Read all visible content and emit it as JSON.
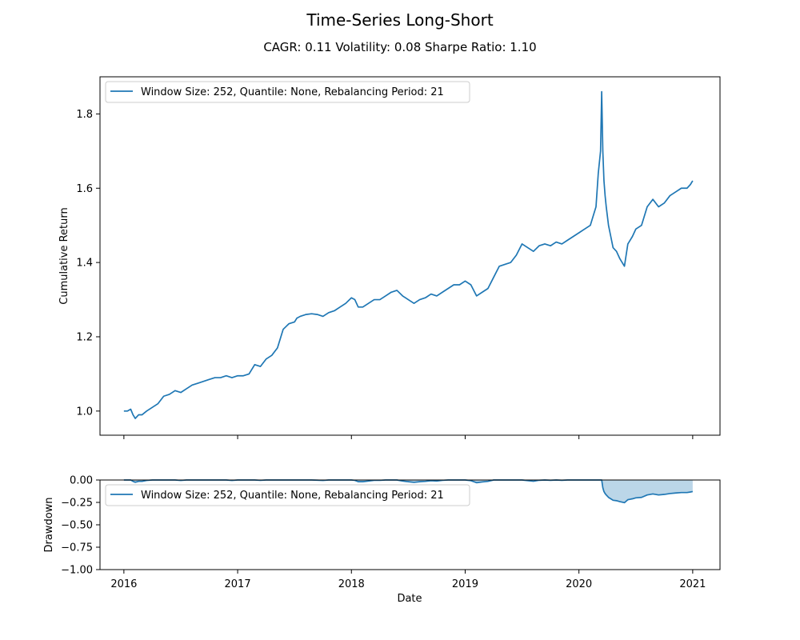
{
  "figure": {
    "title": "Time-Series Long-Short",
    "subtitle": "CAGR: 0.11 Volatility: 0.08 Sharpe Ratio: 1.10",
    "line_color": "#1f77b4"
  },
  "chart_data": [
    {
      "type": "line",
      "name": "cumulative-return",
      "xlabel": "",
      "ylabel": "Cumulative Return",
      "x_ticks": [
        "2016",
        "2017",
        "2018",
        "2019",
        "2020",
        "2021"
      ],
      "y_ticks": [
        "1.0",
        "1.2",
        "1.4",
        "1.6",
        "1.8"
      ],
      "xlim": [
        2015.79,
        2021.24
      ],
      "ylim": [
        0.935,
        1.9
      ],
      "grid": false,
      "legend": "upper left",
      "series": [
        {
          "name": "Window Size: 252, Quantile: None, Rebalancing Period: 21",
          "x": [
            2016.0,
            2016.03,
            2016.06,
            2016.08,
            2016.1,
            2016.13,
            2016.16,
            2016.2,
            2016.25,
            2016.3,
            2016.35,
            2016.4,
            2016.45,
            2016.5,
            2016.55,
            2016.6,
            2016.65,
            2016.7,
            2016.75,
            2016.8,
            2016.85,
            2016.9,
            2016.95,
            2017.0,
            2017.05,
            2017.1,
            2017.15,
            2017.2,
            2017.25,
            2017.3,
            2017.35,
            2017.4,
            2017.45,
            2017.5,
            2017.52,
            2017.55,
            2017.6,
            2017.65,
            2017.7,
            2017.75,
            2017.8,
            2017.85,
            2017.9,
            2017.95,
            2018.0,
            2018.03,
            2018.06,
            2018.1,
            2018.15,
            2018.2,
            2018.25,
            2018.3,
            2018.35,
            2018.4,
            2018.45,
            2018.5,
            2018.55,
            2018.6,
            2018.65,
            2018.7,
            2018.75,
            2018.8,
            2018.85,
            2018.9,
            2018.95,
            2019.0,
            2019.05,
            2019.1,
            2019.15,
            2019.2,
            2019.25,
            2019.3,
            2019.35,
            2019.4,
            2019.45,
            2019.5,
            2019.55,
            2019.6,
            2019.65,
            2019.7,
            2019.75,
            2019.8,
            2019.85,
            2019.9,
            2019.95,
            2020.0,
            2020.05,
            2020.1,
            2020.13,
            2020.15,
            2020.17,
            2020.19,
            2020.2,
            2020.21,
            2020.22,
            2020.23,
            2020.24,
            2020.26,
            2020.28,
            2020.3,
            2020.33,
            2020.36,
            2020.4,
            2020.43,
            2020.45,
            2020.47,
            2020.5,
            2020.55,
            2020.6,
            2020.65,
            2020.7,
            2020.75,
            2020.8,
            2020.85,
            2020.9,
            2020.95,
            2020.98,
            2021.0
          ],
          "y": [
            1.0,
            1.0,
            1.005,
            0.99,
            0.98,
            0.99,
            0.99,
            1.0,
            1.01,
            1.02,
            1.04,
            1.045,
            1.055,
            1.05,
            1.06,
            1.07,
            1.075,
            1.08,
            1.085,
            1.09,
            1.09,
            1.095,
            1.09,
            1.095,
            1.095,
            1.1,
            1.125,
            1.12,
            1.14,
            1.15,
            1.17,
            1.22,
            1.235,
            1.24,
            1.25,
            1.255,
            1.26,
            1.262,
            1.26,
            1.255,
            1.265,
            1.27,
            1.28,
            1.29,
            1.305,
            1.3,
            1.28,
            1.28,
            1.29,
            1.3,
            1.3,
            1.31,
            1.32,
            1.325,
            1.31,
            1.3,
            1.29,
            1.3,
            1.305,
            1.315,
            1.31,
            1.32,
            1.33,
            1.34,
            1.34,
            1.35,
            1.34,
            1.31,
            1.32,
            1.33,
            1.36,
            1.39,
            1.395,
            1.4,
            1.42,
            1.45,
            1.44,
            1.43,
            1.445,
            1.45,
            1.445,
            1.455,
            1.45,
            1.46,
            1.47,
            1.48,
            1.49,
            1.5,
            1.53,
            1.55,
            1.64,
            1.7,
            1.86,
            1.7,
            1.62,
            1.58,
            1.55,
            1.5,
            1.47,
            1.44,
            1.43,
            1.41,
            1.39,
            1.45,
            1.46,
            1.47,
            1.49,
            1.5,
            1.55,
            1.57,
            1.55,
            1.56,
            1.58,
            1.59,
            1.6,
            1.6,
            1.61,
            1.62
          ]
        }
      ]
    },
    {
      "type": "area",
      "name": "drawdown",
      "xlabel": "Date",
      "ylabel": "Drawdown",
      "x_ticks": [
        "2016",
        "2017",
        "2018",
        "2019",
        "2020",
        "2021"
      ],
      "y_ticks": [
        "0.00",
        "−0.25",
        "−0.50",
        "−0.75",
        "−1.00"
      ],
      "xlim": [
        2015.79,
        2021.24
      ],
      "ylim": [
        -1.0,
        0.0
      ],
      "grid": false,
      "legend": "upper left",
      "series": [
        {
          "name": "Window Size: 252, Quantile: None, Rebalancing Period: 21",
          "x": [
            2016.0,
            2016.03,
            2016.06,
            2016.08,
            2016.1,
            2016.13,
            2016.16,
            2016.2,
            2016.25,
            2016.3,
            2016.35,
            2016.4,
            2016.45,
            2016.5,
            2016.55,
            2016.6,
            2016.65,
            2016.7,
            2016.75,
            2016.8,
            2016.85,
            2016.9,
            2016.95,
            2017.0,
            2017.05,
            2017.1,
            2017.15,
            2017.2,
            2017.25,
            2017.3,
            2017.35,
            2017.4,
            2017.45,
            2017.5,
            2017.52,
            2017.55,
            2017.6,
            2017.65,
            2017.7,
            2017.75,
            2017.8,
            2017.85,
            2017.9,
            2017.95,
            2018.0,
            2018.03,
            2018.06,
            2018.1,
            2018.15,
            2018.2,
            2018.25,
            2018.3,
            2018.35,
            2018.4,
            2018.45,
            2018.5,
            2018.55,
            2018.6,
            2018.65,
            2018.7,
            2018.75,
            2018.8,
            2018.85,
            2018.9,
            2018.95,
            2019.0,
            2019.05,
            2019.1,
            2019.15,
            2019.2,
            2019.25,
            2019.3,
            2019.35,
            2019.4,
            2019.45,
            2019.5,
            2019.55,
            2019.6,
            2019.65,
            2019.7,
            2019.75,
            2019.8,
            2019.85,
            2019.9,
            2019.95,
            2020.0,
            2020.05,
            2020.1,
            2020.13,
            2020.15,
            2020.17,
            2020.19,
            2020.2,
            2020.21,
            2020.22,
            2020.23,
            2020.24,
            2020.26,
            2020.28,
            2020.3,
            2020.33,
            2020.36,
            2020.4,
            2020.43,
            2020.45,
            2020.47,
            2020.5,
            2020.55,
            2020.6,
            2020.65,
            2020.7,
            2020.75,
            2020.8,
            2020.85,
            2020.9,
            2020.95,
            2020.98,
            2021.0
          ],
          "y": [
            0.0,
            0.0,
            0.0,
            -0.015,
            -0.025,
            -0.015,
            -0.015,
            -0.005,
            0.0,
            0.0,
            0.0,
            0.0,
            0.0,
            -0.005,
            0.0,
            0.0,
            0.0,
            0.0,
            0.0,
            0.0,
            0.0,
            0.0,
            -0.005,
            0.0,
            0.0,
            0.0,
            0.0,
            -0.004,
            0.0,
            0.0,
            0.0,
            0.0,
            0.0,
            0.0,
            0.0,
            0.0,
            0.0,
            0.0,
            -0.002,
            -0.005,
            0.0,
            0.0,
            0.0,
            0.0,
            0.0,
            -0.004,
            -0.019,
            -0.019,
            -0.012,
            -0.004,
            -0.004,
            0.0,
            0.0,
            0.0,
            -0.011,
            -0.019,
            -0.026,
            -0.019,
            -0.015,
            -0.008,
            -0.011,
            -0.004,
            0.0,
            0.0,
            0.0,
            0.0,
            -0.007,
            -0.03,
            -0.022,
            -0.015,
            0.0,
            0.0,
            0.0,
            0.0,
            0.0,
            0.0,
            -0.007,
            -0.014,
            -0.003,
            0.0,
            -0.003,
            0.0,
            -0.003,
            0.0,
            0.0,
            0.0,
            0.0,
            0.0,
            0.0,
            0.0,
            0.0,
            0.0,
            0.0,
            -0.086,
            -0.129,
            -0.151,
            -0.167,
            -0.194,
            -0.21,
            -0.226,
            -0.231,
            -0.242,
            -0.253,
            -0.22,
            -0.215,
            -0.21,
            -0.199,
            -0.194,
            -0.167,
            -0.156,
            -0.167,
            -0.161,
            -0.151,
            -0.145,
            -0.14,
            -0.14,
            -0.134,
            -0.129
          ]
        }
      ]
    }
  ]
}
